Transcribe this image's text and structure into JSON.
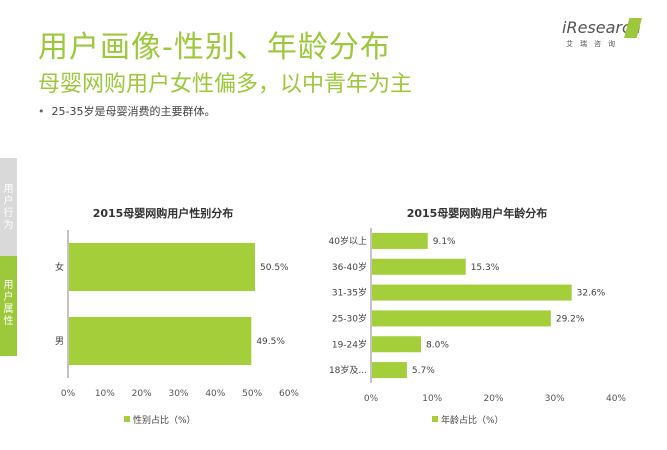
{
  "header": {
    "title": "用户画像-性别、年龄分布",
    "subtitle": "母婴网购用户女性偏多，以中青年为主",
    "bullet": "25-35岁是母婴消费的主要群体。"
  },
  "logo": {
    "brand": "iResearch",
    "sub": "艾瑞咨询"
  },
  "side_nav": {
    "inactive_label": "用户行为",
    "active_label": "用户属性"
  },
  "colors": {
    "accent": "#9cc83b",
    "bar": "#a5cf3a"
  },
  "chart_data": [
    {
      "type": "bar",
      "orientation": "horizontal",
      "title": "2015母婴网购用户性别分布",
      "categories": [
        "女",
        "男"
      ],
      "values": [
        50.5,
        49.5
      ],
      "value_labels": [
        "50.5%",
        "49.5%"
      ],
      "xlim": [
        0,
        60
      ],
      "x_ticks": [
        "0%",
        "10%",
        "20%",
        "30%",
        "40%",
        "50%",
        "60%"
      ],
      "legend": "性别占比（%）",
      "legend_position": "bottom"
    },
    {
      "type": "bar",
      "orientation": "horizontal",
      "title": "2015母婴网购用户年龄分布",
      "categories": [
        "40岁以上",
        "36-40岁",
        "31-35岁",
        "25-30岁",
        "19-24岁",
        "18岁及..."
      ],
      "values": [
        9.1,
        15.3,
        32.6,
        29.2,
        8.0,
        5.7
      ],
      "value_labels": [
        "9.1%",
        "15.3%",
        "32.6%",
        "29.2%",
        "8.0%",
        "5.7%"
      ],
      "xlim": [
        0,
        40
      ],
      "x_ticks": [
        "0%",
        "10%",
        "20%",
        "30%",
        "40%"
      ],
      "legend": "年龄占比（%）",
      "legend_position": "bottom"
    }
  ]
}
